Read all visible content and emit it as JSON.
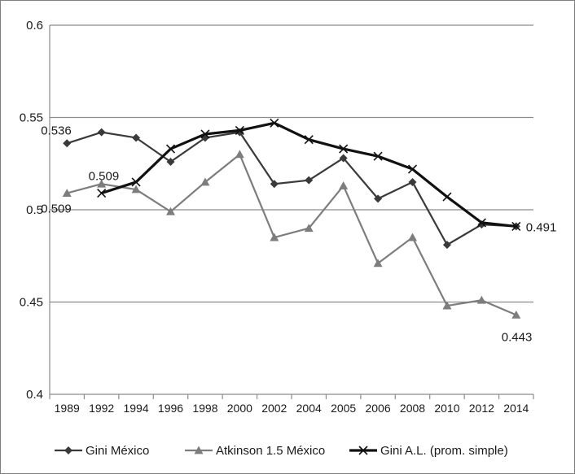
{
  "chart_data": {
    "type": "line",
    "title": "",
    "xlabel": "",
    "ylabel": "",
    "ylim": [
      0.4,
      0.6
    ],
    "yticks": [
      "0.4",
      "0.45",
      "0.5",
      "0.55",
      "0.6"
    ],
    "categories": [
      "1989",
      "1992",
      "1994",
      "1996",
      "1998",
      "2000",
      "2002",
      "2004",
      "2005",
      "2006",
      "2008",
      "2010",
      "2012",
      "2014"
    ],
    "grid": "horizontal",
    "legend_position": "bottom",
    "series": [
      {
        "name": "Gini México",
        "color": "#3a3a3a",
        "marker": "diamond",
        "values": [
          0.536,
          0.542,
          0.539,
          0.526,
          0.539,
          0.542,
          0.514,
          0.516,
          0.528,
          0.506,
          0.515,
          0.481,
          0.492,
          0.491
        ]
      },
      {
        "name": "Atkinson 1.5 México",
        "color": "#7d7d7d",
        "marker": "triangle",
        "values": [
          0.509,
          0.514,
          0.511,
          0.499,
          0.515,
          0.53,
          0.485,
          0.49,
          0.513,
          0.471,
          0.485,
          0.448,
          0.451,
          0.443
        ]
      },
      {
        "name": "Gini A.L. (prom. simple)",
        "color": "#111111",
        "marker": "x",
        "values": [
          null,
          0.509,
          0.515,
          0.533,
          0.541,
          0.543,
          0.547,
          0.538,
          0.533,
          0.529,
          0.522,
          0.507,
          0.493,
          0.491
        ]
      }
    ],
    "annotations": [
      {
        "series": 0,
        "index": 0,
        "text": "0.536"
      },
      {
        "series": 1,
        "index": 0,
        "text": "0.509"
      },
      {
        "series": 2,
        "index": 1,
        "text": "0.509"
      },
      {
        "series": 2,
        "index": 13,
        "text": "0.491"
      },
      {
        "series": 1,
        "index": 13,
        "text": "0.443"
      }
    ]
  }
}
